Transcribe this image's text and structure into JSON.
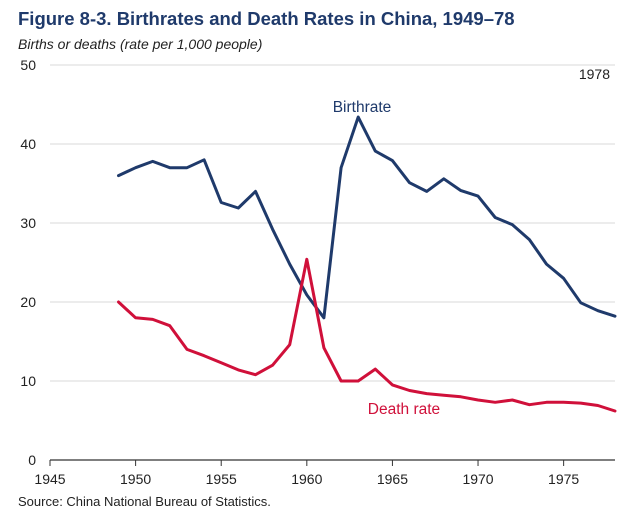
{
  "title": "Figure 8-3. Birthrates and Death Rates in China, 1949–78",
  "ylabel": "Births or deaths (rate per 1,000 people)",
  "source": "Source: China National Bureau of Statistics.",
  "colors": {
    "birth": "#1f3a6b",
    "death": "#d0103a",
    "grid": "#d9d9d9",
    "axis": "#333333"
  },
  "chart_data": {
    "type": "line",
    "title": "Figure 8-3. Birthrates and Death Rates in China, 1949–78",
    "xlabel": "",
    "ylabel": "Births or deaths (rate per 1,000 people)",
    "xlim": [
      1945,
      1978
    ],
    "ylim": [
      0,
      50
    ],
    "xticks": [
      1945,
      1950,
      1955,
      1960,
      1965,
      1970,
      1975
    ],
    "yticks": [
      0,
      10,
      20,
      30,
      40,
      50
    ],
    "grid": "horizontal",
    "annotations": [
      {
        "text": "1978",
        "position": "top-right"
      }
    ],
    "x": [
      1949,
      1950,
      1951,
      1952,
      1953,
      1954,
      1955,
      1956,
      1957,
      1958,
      1959,
      1960,
      1961,
      1962,
      1963,
      1964,
      1965,
      1966,
      1967,
      1968,
      1969,
      1970,
      1971,
      1972,
      1973,
      1974,
      1975,
      1976,
      1977,
      1978
    ],
    "series": [
      {
        "name": "Birthrate",
        "values": [
          36.0,
          37.0,
          37.8,
          37.0,
          37.0,
          38.0,
          32.6,
          31.9,
          34.0,
          29.2,
          24.8,
          20.9,
          18.0,
          37.0,
          43.4,
          39.1,
          37.9,
          35.1,
          34.0,
          35.6,
          34.1,
          33.4,
          30.7,
          29.8,
          27.9,
          24.8,
          23.0,
          19.9,
          18.9,
          18.2
        ]
      },
      {
        "name": "Death rate",
        "values": [
          20.0,
          18.0,
          17.8,
          17.0,
          14.0,
          13.2,
          12.3,
          11.4,
          10.8,
          12.0,
          14.6,
          25.4,
          14.2,
          10.0,
          10.0,
          11.5,
          9.5,
          8.8,
          8.4,
          8.2,
          8.0,
          7.6,
          7.3,
          7.6,
          7.0,
          7.3,
          7.3,
          7.2,
          6.9,
          6.2
        ]
      }
    ]
  }
}
